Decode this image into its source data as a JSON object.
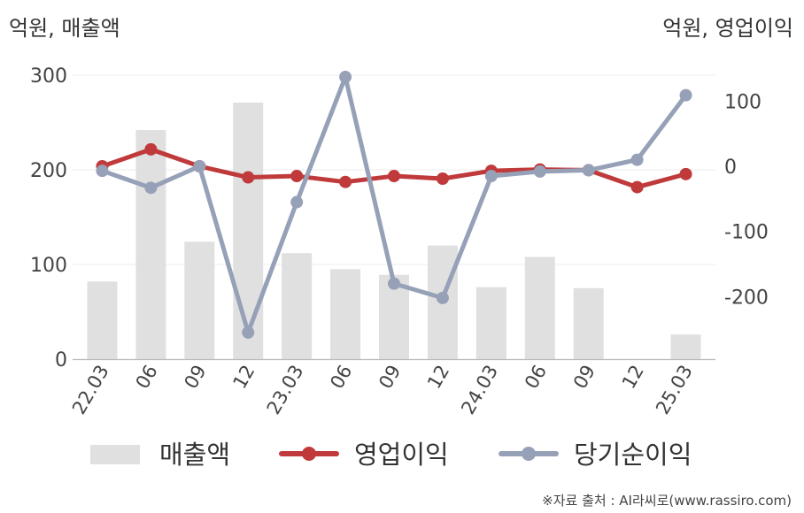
{
  "chart_data": {
    "type": "bar+line",
    "unit_left": "억원, 매출액",
    "unit_right": "억원, 영업이익",
    "categories": [
      "22.03",
      "06",
      "09",
      "12",
      "23.03",
      "06",
      "09",
      "12",
      "24.03",
      "06",
      "09",
      "12",
      "25.03"
    ],
    "y_left": {
      "min": 0,
      "max": 300,
      "ticks": [
        0,
        100,
        200,
        300
      ]
    },
    "y_right": {
      "min": -300,
      "max": 150,
      "ticks": [
        -200,
        -100,
        0,
        100
      ]
    },
    "grid": true,
    "legend_position": "bottom",
    "series": [
      {
        "name": "매출액",
        "type": "bar",
        "axis": "left",
        "color": "#e0e0e0",
        "values": [
          82,
          242,
          124,
          271,
          112,
          95,
          89,
          120,
          76,
          108,
          75,
          null,
          26
        ]
      },
      {
        "name": "영업이익",
        "type": "line",
        "axis": "right",
        "color": "#c0393b",
        "values": [
          0,
          26,
          0,
          -17,
          -15,
          -24,
          -15,
          -19,
          -7,
          -5,
          -6,
          -32,
          -12
        ]
      },
      {
        "name": "당기순이익",
        "type": "line",
        "axis": "right",
        "color": "#96a1b8",
        "values": [
          -7,
          -33,
          0,
          -255,
          -55,
          137,
          -180,
          -202,
          -15,
          -8,
          -6,
          10,
          109
        ]
      }
    ]
  },
  "source": "※자료 출처 : AI라씨로(www.rassiro.com)"
}
